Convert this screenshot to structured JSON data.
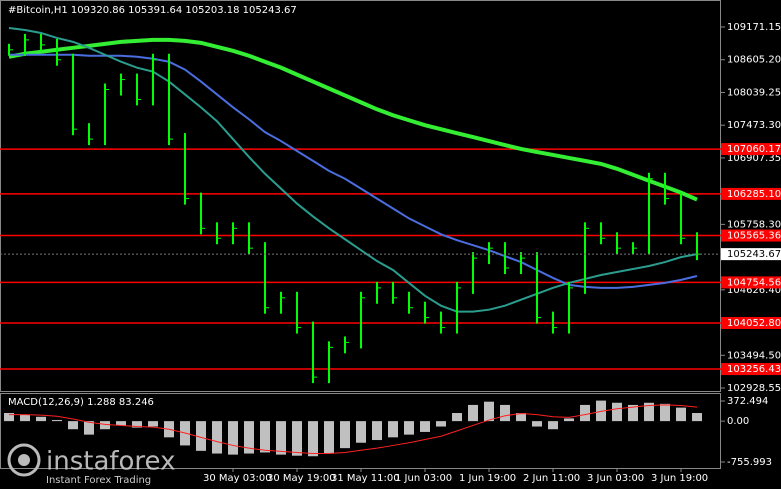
{
  "chart_data": {
    "type": "line",
    "title": "#Bitcoin,H1  109320.86 105391.64 105203.18 105243.67",
    "categories": [
      null,
      null,
      null,
      null,
      null,
      null,
      null,
      null,
      null,
      null,
      null,
      null,
      null,
      null,
      "30 May 03:00",
      null,
      null,
      null,
      "30 May 19:00",
      null,
      null,
      null,
      "31 May 11:00",
      null,
      null,
      null,
      "1 Jun 03:00",
      null,
      null,
      null,
      "1 Jun 19:00",
      null,
      null,
      null,
      "2 Jun 11:00",
      null,
      null,
      null,
      "3 Jun 03:00",
      null,
      null,
      null,
      "3 Jun 19:00",
      null
    ],
    "values": [
      108777,
      108948,
      108862,
      108605,
      107404,
      107233,
      108090,
      108262,
      107919,
      108605,
      107233,
      106204,
      105690,
      105518,
      105690,
      105347,
      104317,
      104489,
      103974,
      103117,
      103632,
      103717,
      104489,
      104660,
      104489,
      104317,
      104146,
      103974,
      104660,
      105175,
      105347,
      105004,
      105175,
      104146,
      103974,
      104660,
      105690,
      105518,
      105347,
      105347,
      106547,
      106204,
      105518,
      105244
    ],
    "color": "#00ff00",
    "lines": [
      {
        "color": "#33ee33",
        "values": [
          108656,
          108708,
          108742,
          108777,
          108811,
          108845,
          108879,
          108914,
          108931,
          108948,
          108948,
          108931,
          108897,
          108828,
          108759,
          108674,
          108571,
          108468,
          108348,
          108228,
          108108,
          107988,
          107868,
          107748,
          107645,
          107559,
          107473,
          107405,
          107336,
          107267,
          107199,
          107130,
          107062,
          107010,
          106959,
          106907,
          106856,
          106804,
          106719,
          106616,
          106513,
          106410,
          106307,
          106187
        ]
      },
      {
        "color": "#4a6ee0",
        "values": [
          108691,
          108691,
          108691,
          108691,
          108691,
          108674,
          108674,
          108674,
          108656,
          108622,
          108571,
          108434,
          108228,
          108005,
          107782,
          107576,
          107353,
          107199,
          107027,
          106856,
          106684,
          106547,
          106376,
          106204,
          106033,
          105861,
          105724,
          105587,
          105484,
          105398,
          105312,
          105209,
          105106,
          104969,
          104832,
          104712,
          104678,
          104661,
          104661,
          104678,
          104712,
          104746,
          104798,
          104866
        ]
      },
      {
        "color": "#2a9d8f",
        "values": [
          109154,
          109120,
          109068,
          108982,
          108914,
          108811,
          108691,
          108571,
          108468,
          108399,
          108228,
          108005,
          107782,
          107542,
          107233,
          106924,
          106633,
          106376,
          106118,
          105895,
          105690,
          105501,
          105312,
          105124,
          104969,
          104746,
          104523,
          104352,
          104249,
          104249,
          104283,
          104352,
          104455,
          104558,
          104661,
          104746,
          104815,
          104883,
          104935,
          104986,
          105038,
          105106,
          105192,
          105244
        ]
      }
    ],
    "ylim": [
      102877,
      109638
    ],
    "yticks": [
      109171.15,
      {
        "value": 108605.2,
        "label": "108605.20"
      },
      108039.25,
      {
        "value": 107473.3,
        "label": "107473.30"
      },
      106907.35,
      {
        "value": 105758.3,
        "label": "105758.30"
      },
      {
        "value": 104626.4,
        "label": "104626.40"
      },
      {
        "value": 103494.5,
        "label": "103494.50"
      },
      102928.55
    ],
    "levels": [
      107060.17,
      {
        "value": 106285.1,
        "label": "106285.10"
      },
      105565.36,
      104754.56,
      {
        "value": 104052.8,
        "label": "104052.80"
      },
      103256.43
    ],
    "level_color": "#ff0000",
    "last_price": 105243.67,
    "macd": {
      "title": "MACD(12,26,9) 1.288 83.246",
      "ylim": [
        -886,
        502
      ],
      "yticks": [
        372.494,
        {
          "value": 0,
          "label": "0.00"
        },
        -755.993
      ],
      "histogram": [
        150,
        120,
        80,
        20,
        -150,
        -250,
        -150,
        -80,
        -120,
        -100,
        -300,
        -450,
        -550,
        -600,
        -620,
        -600,
        -580,
        -620,
        -640,
        -650,
        -600,
        -500,
        -400,
        -350,
        -300,
        -250,
        -200,
        -100,
        150,
        300,
        360,
        300,
        150,
        -100,
        -150,
        50,
        300,
        380,
        340,
        300,
        340,
        320,
        250,
        150
      ],
      "histogram_color": "#c0c0c0",
      "signal": [
        120,
        120,
        110,
        90,
        40,
        -20,
        -60,
        -80,
        -100,
        -110,
        -150,
        -220,
        -300,
        -380,
        -450,
        -500,
        -540,
        -560,
        -580,
        -600,
        -600,
        -580,
        -540,
        -500,
        -450,
        -400,
        -340,
        -280,
        -180,
        -80,
        20,
        100,
        140,
        120,
        80,
        70,
        120,
        180,
        230,
        260,
        290,
        300,
        290,
        260
      ],
      "signal_color": "#ff2020"
    },
    "watermark": "instaforex",
    "watermark_sub": "Instant Forex Trading"
  }
}
